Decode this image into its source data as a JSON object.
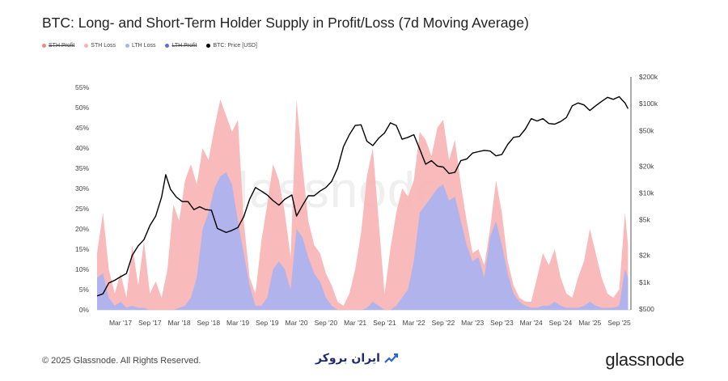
{
  "header": {
    "title": "BTC: Long- and Short-Term Holder Supply in Profit/Loss (7d Moving Average)"
  },
  "legend": [
    {
      "label": "STH Profit",
      "color": "#f08a8a",
      "enabled": false
    },
    {
      "label": "STH Loss",
      "color": "#f7b2b2",
      "enabled": true
    },
    {
      "label": "LTH Loss",
      "color": "#a9b4f2",
      "enabled": true
    },
    {
      "label": "LTH Profit",
      "color": "#5a6fd8",
      "enabled": false
    },
    {
      "label": "BTC: Price [USD]",
      "color": "#000000",
      "enabled": true
    }
  ],
  "watermark": "glassnode",
  "footer": {
    "copyright": "© 2025 Glassnode. All Rights Reserved.",
    "brand": "glassnode",
    "partner": "ایران بروکر"
  },
  "chart_data": {
    "type": "area",
    "xlabels": [
      "Mar '17",
      "Sep '17",
      "Mar '18",
      "Sep '18",
      "Mar '19",
      "Sep '19",
      "Mar '20",
      "Sep '20",
      "Mar '21",
      "Sep '21",
      "Mar '22",
      "Sep '22",
      "Mar '23",
      "Sep '23",
      "Mar '24",
      "Sep '24",
      "Mar '25",
      "Sep '25"
    ],
    "ylabels_left": [
      "0%",
      "5%",
      "10%",
      "15%",
      "20%",
      "25%",
      "30%",
      "35%",
      "40%",
      "45%",
      "50%",
      "55%"
    ],
    "ylabels_right": [
      "$500",
      "$1k",
      "$2k",
      "$5k",
      "$10k",
      "$20k",
      "$50k",
      "$100k",
      "$200k"
    ],
    "ylim_left": [
      0,
      55
    ],
    "ylim_right_log": [
      500,
      200000
    ],
    "x_range": [
      2016.8,
      2025.9
    ],
    "series": [
      {
        "name": "STH Loss",
        "color": "#f7b2b2",
        "points": [
          [
            2016.8,
            14
          ],
          [
            2016.9,
            24
          ],
          [
            2017.0,
            10
          ],
          [
            2017.1,
            4
          ],
          [
            2017.2,
            9
          ],
          [
            2017.3,
            3
          ],
          [
            2017.4,
            16
          ],
          [
            2017.5,
            6
          ],
          [
            2017.6,
            17
          ],
          [
            2017.7,
            4
          ],
          [
            2017.8,
            7
          ],
          [
            2017.9,
            3
          ],
          [
            2018.0,
            10
          ],
          [
            2018.1,
            26
          ],
          [
            2018.2,
            22
          ],
          [
            2018.3,
            32
          ],
          [
            2018.4,
            36
          ],
          [
            2018.5,
            31
          ],
          [
            2018.6,
            40
          ],
          [
            2018.7,
            37
          ],
          [
            2018.8,
            45
          ],
          [
            2018.9,
            52
          ],
          [
            2019.0,
            48
          ],
          [
            2019.1,
            44
          ],
          [
            2019.2,
            47
          ],
          [
            2019.3,
            22
          ],
          [
            2019.4,
            8
          ],
          [
            2019.5,
            4
          ],
          [
            2019.6,
            17
          ],
          [
            2019.7,
            26
          ],
          [
            2019.8,
            36
          ],
          [
            2019.9,
            32
          ],
          [
            2020.0,
            24
          ],
          [
            2020.1,
            13
          ],
          [
            2020.2,
            52
          ],
          [
            2020.3,
            36
          ],
          [
            2020.4,
            22
          ],
          [
            2020.5,
            16
          ],
          [
            2020.6,
            14
          ],
          [
            2020.7,
            9
          ],
          [
            2020.8,
            6
          ],
          [
            2020.9,
            2
          ],
          [
            2021.0,
            1
          ],
          [
            2021.1,
            4
          ],
          [
            2021.2,
            10
          ],
          [
            2021.3,
            19
          ],
          [
            2021.4,
            33
          ],
          [
            2021.5,
            40
          ],
          [
            2021.6,
            22
          ],
          [
            2021.7,
            4
          ],
          [
            2021.8,
            15
          ],
          [
            2021.9,
            24
          ],
          [
            2022.0,
            30
          ],
          [
            2022.1,
            28
          ],
          [
            2022.2,
            32
          ],
          [
            2022.3,
            44
          ],
          [
            2022.4,
            42
          ],
          [
            2022.5,
            38
          ],
          [
            2022.6,
            45
          ],
          [
            2022.7,
            47
          ],
          [
            2022.8,
            37
          ],
          [
            2022.9,
            42
          ],
          [
            2023.0,
            31
          ],
          [
            2023.1,
            22
          ],
          [
            2023.2,
            14
          ],
          [
            2023.3,
            15
          ],
          [
            2023.4,
            11
          ],
          [
            2023.5,
            20
          ],
          [
            2023.6,
            32
          ],
          [
            2023.7,
            24
          ],
          [
            2023.8,
            12
          ],
          [
            2023.9,
            6
          ],
          [
            2024.0,
            3
          ],
          [
            2024.1,
            2
          ],
          [
            2024.2,
            2
          ],
          [
            2024.3,
            8
          ],
          [
            2024.4,
            14
          ],
          [
            2024.5,
            11
          ],
          [
            2024.6,
            15
          ],
          [
            2024.7,
            8
          ],
          [
            2024.8,
            4
          ],
          [
            2024.9,
            3
          ],
          [
            2025.0,
            8
          ],
          [
            2025.1,
            12
          ],
          [
            2025.2,
            20
          ],
          [
            2025.3,
            14
          ],
          [
            2025.4,
            8
          ],
          [
            2025.5,
            4
          ],
          [
            2025.6,
            3
          ],
          [
            2025.7,
            5
          ],
          [
            2025.8,
            24
          ],
          [
            2025.85,
            16
          ]
        ]
      },
      {
        "name": "LTH Loss",
        "color": "#a9b4f2",
        "points": [
          [
            2016.8,
            8
          ],
          [
            2016.9,
            9
          ],
          [
            2017.0,
            3
          ],
          [
            2017.1,
            1
          ],
          [
            2017.2,
            2
          ],
          [
            2017.3,
            0.5
          ],
          [
            2017.4,
            1
          ],
          [
            2017.5,
            0.5
          ],
          [
            2017.6,
            0.5
          ],
          [
            2017.7,
            0
          ],
          [
            2017.8,
            0
          ],
          [
            2017.9,
            0
          ],
          [
            2018.0,
            0
          ],
          [
            2018.1,
            0
          ],
          [
            2018.2,
            0.5
          ],
          [
            2018.3,
            1
          ],
          [
            2018.4,
            3
          ],
          [
            2018.5,
            8
          ],
          [
            2018.6,
            20
          ],
          [
            2018.7,
            24
          ],
          [
            2018.8,
            30
          ],
          [
            2018.9,
            33
          ],
          [
            2019.0,
            34
          ],
          [
            2019.1,
            31
          ],
          [
            2019.2,
            22
          ],
          [
            2019.3,
            14
          ],
          [
            2019.4,
            6
          ],
          [
            2019.5,
            1
          ],
          [
            2019.6,
            1
          ],
          [
            2019.7,
            3
          ],
          [
            2019.8,
            10
          ],
          [
            2019.9,
            12
          ],
          [
            2020.0,
            10
          ],
          [
            2020.1,
            5
          ],
          [
            2020.2,
            20
          ],
          [
            2020.3,
            18
          ],
          [
            2020.4,
            13
          ],
          [
            2020.5,
            9
          ],
          [
            2020.6,
            7
          ],
          [
            2020.7,
            3
          ],
          [
            2020.8,
            1
          ],
          [
            2020.9,
            0
          ],
          [
            2021.0,
            0
          ],
          [
            2021.1,
            0
          ],
          [
            2021.2,
            0
          ],
          [
            2021.3,
            0
          ],
          [
            2021.4,
            0.5
          ],
          [
            2021.5,
            2
          ],
          [
            2021.6,
            1
          ],
          [
            2021.7,
            0
          ],
          [
            2021.8,
            0
          ],
          [
            2021.9,
            1
          ],
          [
            2022.0,
            3
          ],
          [
            2022.1,
            5
          ],
          [
            2022.2,
            12
          ],
          [
            2022.3,
            24
          ],
          [
            2022.4,
            26
          ],
          [
            2022.5,
            28
          ],
          [
            2022.6,
            30
          ],
          [
            2022.7,
            31
          ],
          [
            2022.8,
            27
          ],
          [
            2022.9,
            28
          ],
          [
            2023.0,
            22
          ],
          [
            2023.1,
            16
          ],
          [
            2023.2,
            12
          ],
          [
            2023.3,
            13
          ],
          [
            2023.4,
            8
          ],
          [
            2023.5,
            18
          ],
          [
            2023.6,
            22
          ],
          [
            2023.7,
            16
          ],
          [
            2023.8,
            9
          ],
          [
            2023.9,
            4
          ],
          [
            2024.0,
            2
          ],
          [
            2024.1,
            1
          ],
          [
            2024.2,
            0.5
          ],
          [
            2024.3,
            0.5
          ],
          [
            2024.4,
            1
          ],
          [
            2024.5,
            1
          ],
          [
            2024.6,
            2
          ],
          [
            2024.7,
            1
          ],
          [
            2024.8,
            0.5
          ],
          [
            2024.9,
            0.5
          ],
          [
            2025.0,
            0.5
          ],
          [
            2025.1,
            1
          ],
          [
            2025.2,
            2
          ],
          [
            2025.3,
            1
          ],
          [
            2025.4,
            0.5
          ],
          [
            2025.5,
            0.5
          ],
          [
            2025.6,
            0.5
          ],
          [
            2025.7,
            1
          ],
          [
            2025.8,
            10
          ],
          [
            2025.85,
            8
          ]
        ]
      },
      {
        "name": "BTC: Price [USD]",
        "color": "#000000",
        "axis": "right-log",
        "points": [
          [
            2016.8,
            700
          ],
          [
            2016.9,
            740
          ],
          [
            2017.0,
            980
          ],
          [
            2017.1,
            1050
          ],
          [
            2017.2,
            1150
          ],
          [
            2017.3,
            1250
          ],
          [
            2017.4,
            2000
          ],
          [
            2017.5,
            2550
          ],
          [
            2017.6,
            3000
          ],
          [
            2017.7,
            4300
          ],
          [
            2017.8,
            5500
          ],
          [
            2017.9,
            9000
          ],
          [
            2017.97,
            16000
          ],
          [
            2018.05,
            11000
          ],
          [
            2018.15,
            9000
          ],
          [
            2018.25,
            8000
          ],
          [
            2018.35,
            8000
          ],
          [
            2018.45,
            6500
          ],
          [
            2018.55,
            7000
          ],
          [
            2018.65,
            6500
          ],
          [
            2018.75,
            6400
          ],
          [
            2018.85,
            4000
          ],
          [
            2019.0,
            3600
          ],
          [
            2019.1,
            3800
          ],
          [
            2019.2,
            4100
          ],
          [
            2019.3,
            5400
          ],
          [
            2019.4,
            8500
          ],
          [
            2019.5,
            11500
          ],
          [
            2019.6,
            10500
          ],
          [
            2019.7,
            9500
          ],
          [
            2019.8,
            8200
          ],
          [
            2019.9,
            7300
          ],
          [
            2020.0,
            8500
          ],
          [
            2020.12,
            9500
          ],
          [
            2020.2,
            5500
          ],
          [
            2020.3,
            7200
          ],
          [
            2020.4,
            9300
          ],
          [
            2020.5,
            9300
          ],
          [
            2020.6,
            10500
          ],
          [
            2020.7,
            11500
          ],
          [
            2020.8,
            13500
          ],
          [
            2020.9,
            19000
          ],
          [
            2021.0,
            33000
          ],
          [
            2021.1,
            45000
          ],
          [
            2021.2,
            57000
          ],
          [
            2021.3,
            58000
          ],
          [
            2021.4,
            38000
          ],
          [
            2021.5,
            34000
          ],
          [
            2021.6,
            41000
          ],
          [
            2021.7,
            47000
          ],
          [
            2021.8,
            61000
          ],
          [
            2021.9,
            57000
          ],
          [
            2022.0,
            40000
          ],
          [
            2022.1,
            42000
          ],
          [
            2022.2,
            45000
          ],
          [
            2022.3,
            31000
          ],
          [
            2022.4,
            21000
          ],
          [
            2022.5,
            23000
          ],
          [
            2022.6,
            20000
          ],
          [
            2022.7,
            19500
          ],
          [
            2022.8,
            16500
          ],
          [
            2022.9,
            17000
          ],
          [
            2023.0,
            23000
          ],
          [
            2023.1,
            24000
          ],
          [
            2023.2,
            28000
          ],
          [
            2023.3,
            29000
          ],
          [
            2023.4,
            30000
          ],
          [
            2023.5,
            29500
          ],
          [
            2023.6,
            26000
          ],
          [
            2023.7,
            27000
          ],
          [
            2023.8,
            35000
          ],
          [
            2023.9,
            42000
          ],
          [
            2024.0,
            43000
          ],
          [
            2024.1,
            52000
          ],
          [
            2024.2,
            68000
          ],
          [
            2024.3,
            64000
          ],
          [
            2024.4,
            68000
          ],
          [
            2024.5,
            60000
          ],
          [
            2024.6,
            59000
          ],
          [
            2024.7,
            63000
          ],
          [
            2024.8,
            70000
          ],
          [
            2024.9,
            95000
          ],
          [
            2025.0,
            102000
          ],
          [
            2025.1,
            97000
          ],
          [
            2025.2,
            84000
          ],
          [
            2025.3,
            95000
          ],
          [
            2025.4,
            106000
          ],
          [
            2025.5,
            118000
          ],
          [
            2025.6,
            112000
          ],
          [
            2025.7,
            120000
          ],
          [
            2025.75,
            110000
          ],
          [
            2025.8,
            102000
          ],
          [
            2025.85,
            88000
          ]
        ]
      }
    ]
  }
}
